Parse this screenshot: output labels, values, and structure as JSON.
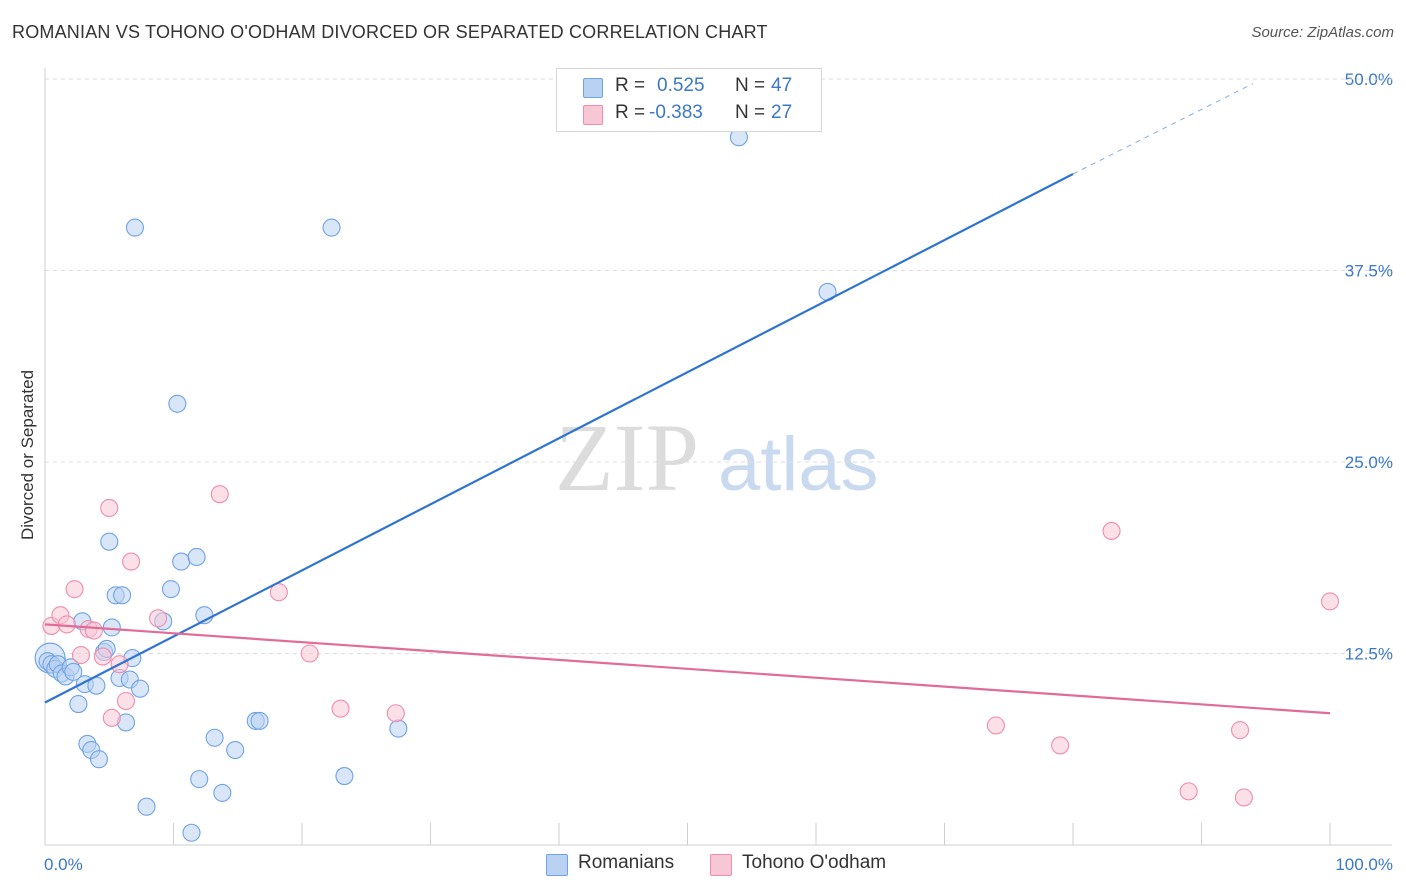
{
  "title": "ROMANIAN VS TOHONO O'ODHAM DIVORCED OR SEPARATED CORRELATION CHART",
  "source": "Source: ZipAtlas.com",
  "watermark": {
    "zip": "ZIP",
    "atlas": "atlas"
  },
  "legend": {
    "r_label": "R =",
    "n_label": "N =",
    "rows": [
      {
        "r": "0.525",
        "n": "47"
      },
      {
        "r": "-0.383",
        "n": "27"
      }
    ]
  },
  "chart_data": {
    "type": "scatter",
    "title": "ROMANIAN VS TOHONO O'ODHAM DIVORCED OR SEPARATED CORRELATION CHART",
    "xlabel": "",
    "ylabel": "Divorced or Separated",
    "xlim": [
      0,
      100
    ],
    "ylim": [
      0,
      50
    ],
    "x_tick_labels": [
      "0.0%",
      "100.0%"
    ],
    "y_ticks": [
      12.5,
      25.0,
      37.5,
      50.0
    ],
    "y_tick_labels": [
      "12.5%",
      "25.0%",
      "37.5%",
      "50.0%"
    ],
    "grid": true,
    "series": [
      {
        "name": "Romanians",
        "color": "#6fa3e6",
        "fill": "#b9d2f2",
        "line_color": "#2f74d0",
        "trend": {
          "x0": 0,
          "y0": 9.3,
          "x1": 80,
          "y1": 43.8,
          "dash_to_x": 94,
          "dash_to_y": 49.7
        },
        "points": [
          [
            0.2,
            12.0
          ],
          [
            0.5,
            11.8
          ],
          [
            0.8,
            11.5
          ],
          [
            1.0,
            11.8
          ],
          [
            1.3,
            11.2
          ],
          [
            1.6,
            11.0
          ],
          [
            2.0,
            11.6
          ],
          [
            2.2,
            11.3
          ],
          [
            2.6,
            9.2
          ],
          [
            2.9,
            14.6
          ],
          [
            3.1,
            10.5
          ],
          [
            3.3,
            6.6
          ],
          [
            3.6,
            6.2
          ],
          [
            4.0,
            10.4
          ],
          [
            4.2,
            5.6
          ],
          [
            4.6,
            12.6
          ],
          [
            4.8,
            12.8
          ],
          [
            5.0,
            19.8
          ],
          [
            5.2,
            14.2
          ],
          [
            5.5,
            16.3
          ],
          [
            5.8,
            10.9
          ],
          [
            6.0,
            16.3
          ],
          [
            6.3,
            8.0
          ],
          [
            6.6,
            10.8
          ],
          [
            6.8,
            12.2
          ],
          [
            7.0,
            40.3
          ],
          [
            7.4,
            10.2
          ],
          [
            7.9,
            2.5
          ],
          [
            9.2,
            14.6
          ],
          [
            9.8,
            16.7
          ],
          [
            10.3,
            28.8
          ],
          [
            10.6,
            18.5
          ],
          [
            11.4,
            0.8
          ],
          [
            11.8,
            18.8
          ],
          [
            12.0,
            4.3
          ],
          [
            12.4,
            15.0
          ],
          [
            13.2,
            7.0
          ],
          [
            13.8,
            3.4
          ],
          [
            14.8,
            6.2
          ],
          [
            16.4,
            8.1
          ],
          [
            16.7,
            8.1
          ],
          [
            22.3,
            40.3
          ],
          [
            23.3,
            4.5
          ],
          [
            27.5,
            7.6
          ],
          [
            54.0,
            46.2
          ],
          [
            60.9,
            36.1
          ]
        ],
        "large_points": [
          [
            0.4,
            12.2
          ]
        ]
      },
      {
        "name": "Tohono O'odham",
        "color": "#f08cad",
        "fill": "#f8c7d6",
        "line_color": "#e06c97",
        "trend": {
          "x0": 0,
          "y0": 14.4,
          "x1": 100,
          "y1": 8.6
        },
        "points": [
          [
            0.5,
            14.3
          ],
          [
            1.2,
            15.0
          ],
          [
            1.7,
            14.4
          ],
          [
            2.3,
            16.7
          ],
          [
            2.8,
            12.4
          ],
          [
            3.4,
            14.1
          ],
          [
            3.8,
            14.0
          ],
          [
            4.5,
            12.3
          ],
          [
            5.0,
            22.0
          ],
          [
            5.2,
            8.3
          ],
          [
            5.8,
            11.8
          ],
          [
            6.3,
            9.4
          ],
          [
            6.7,
            18.5
          ],
          [
            8.8,
            14.8
          ],
          [
            13.6,
            22.9
          ],
          [
            18.2,
            16.5
          ],
          [
            20.6,
            12.5
          ],
          [
            23.0,
            8.9
          ],
          [
            27.3,
            8.6
          ],
          [
            74.0,
            7.8
          ],
          [
            79.0,
            6.5
          ],
          [
            83.0,
            20.5
          ],
          [
            89.0,
            3.5
          ],
          [
            93.0,
            7.5
          ],
          [
            93.3,
            3.1
          ],
          [
            100.0,
            15.9
          ]
        ]
      }
    ]
  },
  "bottom_legend": {
    "romanians": "Romanians",
    "tohono": "Tohono O'odham"
  }
}
